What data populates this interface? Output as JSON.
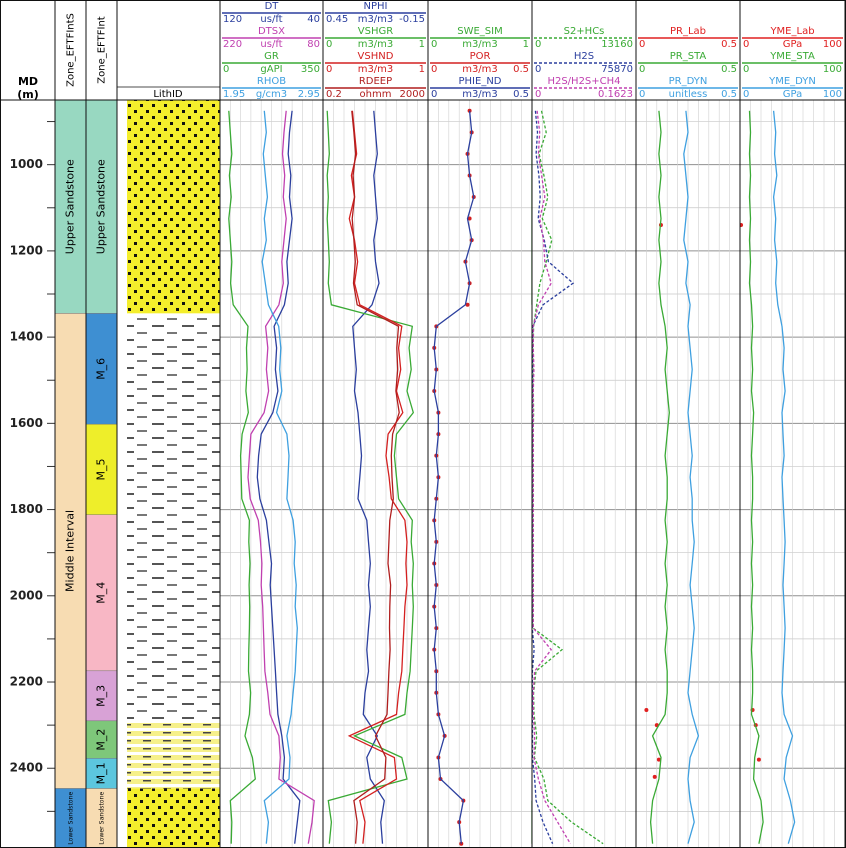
{
  "chart_data": {
    "type": "well-log",
    "depth_axis": {
      "label": "MD",
      "unit": "(m)"
    },
    "ylim": [
      850,
      2585
    ],
    "yticks": [
      1000,
      1200,
      1400,
      1600,
      1800,
      2000,
      2200,
      2400
    ],
    "minor_yticks": [
      900,
      1100,
      1300,
      1500,
      1700,
      1900,
      2100,
      2300,
      2500
    ],
    "grid": true,
    "depths": [
      875,
      925,
      975,
      1025,
      1075,
      1125,
      1175,
      1225,
      1275,
      1325,
      1375,
      1425,
      1475,
      1525,
      1575,
      1625,
      1675,
      1725,
      1775,
      1825,
      1875,
      1925,
      1975,
      2025,
      2075,
      2125,
      2175,
      2225,
      2275,
      2325,
      2375,
      2425,
      2475,
      2525,
      2575
    ],
    "zone_tracks": [
      {
        "name": "Zone_EFTFIntS",
        "zones": [
          {
            "label": "Upper Sandstone",
            "top": 850,
            "base": 1345,
            "color": "#98d8c1"
          },
          {
            "label": "Middle Interval",
            "top": 1345,
            "base": 2447,
            "color": "#f7dcb2"
          },
          {
            "label": "Lower Sandstone",
            "top": 2447,
            "base": 2585,
            "color": "#3e8fd2"
          }
        ]
      },
      {
        "name": "Zone_EFTFInt",
        "zones": [
          {
            "label": "Upper Sandstone",
            "top": 850,
            "base": 1345,
            "color": "#98d8c1"
          },
          {
            "label": "M_6",
            "top": 1345,
            "base": 1602,
            "color": "#3e8fd2"
          },
          {
            "label": "M_5",
            "top": 1602,
            "base": 1812,
            "color": "#eeee2a"
          },
          {
            "label": "M_4",
            "top": 1812,
            "base": 2174,
            "color": "#f8b7c5"
          },
          {
            "label": "M_3",
            "top": 2174,
            "base": 2290,
            "color": "#d8a2d6"
          },
          {
            "label": "M_2",
            "top": 2290,
            "base": 2377,
            "color": "#7ec77a"
          },
          {
            "label": "M_1",
            "top": 2377,
            "base": 2447,
            "color": "#5cc6de"
          },
          {
            "label": "Lower Sandstone",
            "top": 2447,
            "base": 2585,
            "color": "#f7dcb2"
          }
        ]
      }
    ],
    "lith_track": {
      "name": "LithID",
      "intervals": [
        {
          "top": 850,
          "base": 1345,
          "pattern": "sandstone"
        },
        {
          "top": 1345,
          "base": 2290,
          "pattern": "shale"
        },
        {
          "top": 2290,
          "base": 2447,
          "pattern": "interbedded"
        },
        {
          "top": 2447,
          "base": 2585,
          "pattern": "sandstone"
        }
      ]
    },
    "tracks": [
      {
        "curves": [
          {
            "name": "DT",
            "unit": "us/ft",
            "left": 120,
            "right": 40,
            "color": "#2b3f9e",
            "values": [
              64,
              66,
              67,
              65,
              66,
              64,
              66,
              68,
              67,
              70,
              78,
              76,
              77,
              75,
              79,
              88,
              90,
              91,
              89,
              84,
              82,
              80,
              81,
              80,
              79,
              78,
              77,
              76,
              75,
              72,
              70,
              71,
              58,
              60,
              62
            ]
          },
          {
            "name": "DTSX",
            "unit": "us/ft",
            "left": 220,
            "right": 80,
            "color": "#c040b0",
            "values": [
              130,
              133,
              135,
              132,
              134,
              130,
              133,
              136,
              134,
              140,
              158,
              155,
              157,
              154,
              160,
              178,
              180,
              182,
              179,
              168,
              165,
              163,
              164,
              162,
              161,
              160,
              159,
              155,
              152,
              140,
              138,
              140,
              92,
              95,
              100
            ]
          },
          {
            "name": "GR",
            "unit": "gAPI",
            "left": 0,
            "right": 350,
            "color": "#3aaa35",
            "values": [
              30,
              35,
              40,
              32,
              38,
              30,
              35,
              40,
              36,
              45,
              95,
              90,
              92,
              88,
              96,
              75,
              70,
              72,
              74,
              100,
              98,
              102,
              99,
              101,
              100,
              98,
              97,
              104,
              100,
              85,
              110,
              120,
              35,
              40,
              38
            ]
          },
          {
            "name": "RHOB",
            "unit": "g/cm3",
            "left": 1.95,
            "right": 2.95,
            "color": "#3fa0e0",
            "values": [
              2.38,
              2.4,
              2.37,
              2.39,
              2.41,
              2.38,
              2.4,
              2.36,
              2.39,
              2.42,
              2.52,
              2.54,
              2.53,
              2.55,
              2.5,
              2.6,
              2.62,
              2.61,
              2.6,
              2.66,
              2.68,
              2.67,
              2.69,
              2.68,
              2.7,
              2.69,
              2.68,
              2.66,
              2.64,
              2.6,
              2.63,
              2.62,
              2.38,
              2.42,
              2.4
            ]
          }
        ]
      },
      {
        "curves": [
          {
            "name": "NPHI",
            "unit": "m3/m3",
            "left": 0.45,
            "right": -0.15,
            "color": "#2b3f9e",
            "values": [
              0.16,
              0.15,
              0.14,
              0.16,
              0.15,
              0.14,
              0.16,
              0.15,
              0.13,
              0.17,
              0.28,
              0.27,
              0.26,
              0.27,
              0.25,
              0.24,
              0.23,
              0.24,
              0.25,
              0.2,
              0.19,
              0.18,
              0.19,
              0.18,
              0.19,
              0.2,
              0.19,
              0.21,
              0.22,
              0.14,
              0.2,
              0.18,
              0.1,
              0.12,
              0.11
            ]
          },
          {
            "name": "VSHGR",
            "unit": "m3/m3",
            "left": 0,
            "right": 1,
            "color": "#3aaa35",
            "values": [
              0.04,
              0.05,
              0.06,
              0.04,
              0.05,
              0.04,
              0.05,
              0.06,
              0.05,
              0.08,
              0.85,
              0.82,
              0.84,
              0.8,
              0.86,
              0.7,
              0.68,
              0.7,
              0.72,
              0.85,
              0.84,
              0.86,
              0.85,
              0.86,
              0.85,
              0.84,
              0.83,
              0.8,
              0.78,
              0.3,
              0.75,
              0.8,
              0.05,
              0.08,
              0.06
            ]
          },
          {
            "name": "VSHND",
            "unit": "m3/m3",
            "left": 0,
            "right": 1,
            "color": "#d42020",
            "values": [
              0.28,
              0.3,
              0.32,
              0.27,
              0.3,
              0.25,
              0.3,
              0.33,
              0.3,
              0.35,
              0.75,
              0.72,
              0.74,
              0.7,
              0.76,
              0.62,
              0.6,
              0.63,
              0.65,
              0.78,
              0.8,
              0.79,
              0.8,
              0.78,
              0.77,
              0.76,
              0.75,
              0.72,
              0.7,
              0.25,
              0.68,
              0.7,
              0.35,
              0.4,
              0.38
            ]
          },
          {
            "name": "RDEEP",
            "unit": "ohmm",
            "left": 0.2,
            "right": 2000,
            "log": true,
            "color": "#b01e1e",
            "values": [
              2.5,
              3,
              3.5,
              2.8,
              3.2,
              2.6,
              3,
              3.4,
              2.9,
              4,
              150,
              130,
              140,
              120,
              160,
              90,
              80,
              85,
              95,
              70,
              65,
              60,
              75,
              70,
              68,
              72,
              65,
              60,
              55,
              20,
              50,
              45,
              3,
              4,
              3.5
            ]
          }
        ]
      },
      {
        "curves": [
          {
            "name": "SWE_SIM",
            "unit": "m3/m3",
            "left": 0,
            "right": 1,
            "color": "#3aaa35",
            "values": [
              1,
              1,
              1,
              1,
              1,
              1,
              1,
              1,
              1,
              1,
              null,
              null,
              null,
              null,
              null,
              null,
              null,
              null,
              null,
              null,
              null,
              null,
              null,
              null,
              null,
              null,
              null,
              null,
              null,
              null,
              null,
              null,
              1,
              1,
              1
            ]
          },
          {
            "name": "POR",
            "unit": "m3/m3",
            "left": 0,
            "right": 0.5,
            "color": "#d42020",
            "style": "points",
            "values": [
              0.2,
              0.21,
              0.19,
              0.2,
              0.22,
              0.2,
              0.21,
              0.18,
              0.2,
              0.19,
              0.04,
              0.03,
              0.04,
              0.03,
              0.05,
              0.05,
              0.04,
              0.05,
              0.04,
              0.03,
              0.04,
              0.03,
              0.04,
              0.03,
              0.04,
              0.03,
              0.04,
              0.04,
              0.05,
              0.08,
              0.05,
              0.06,
              0.17,
              0.15,
              0.16
            ]
          },
          {
            "name": "PHIE_ND",
            "unit": "m3/m3",
            "left": 0,
            "right": 0.5,
            "color": "#2b3f9e",
            "values": [
              0.2,
              0.21,
              0.19,
              0.2,
              0.22,
              0.19,
              0.21,
              0.18,
              0.2,
              0.18,
              0.04,
              0.03,
              0.04,
              0.03,
              0.05,
              0.05,
              0.04,
              0.05,
              0.04,
              0.03,
              0.04,
              0.03,
              0.04,
              0.03,
              0.04,
              0.03,
              0.04,
              0.04,
              0.05,
              0.08,
              0.05,
              0.06,
              0.17,
              0.15,
              0.16
            ]
          }
        ]
      },
      {
        "curves": [
          {
            "name": "S2+HCs",
            "left": 0,
            "right": 13160,
            "color": "#3aaa35",
            "dash": true,
            "values": [
              1200,
              1800,
              900,
              1500,
              2000,
              1300,
              2500,
              1800,
              1000,
              600,
              200,
              150,
              180,
              160,
              200,
              150,
              140,
              160,
              170,
              150,
              140,
              150,
              160,
              150,
              140,
              3800,
              500,
              200,
              250,
              600,
              300,
              1500,
              2000,
              5000,
              9000
            ]
          },
          {
            "name": "H2S",
            "left": 0,
            "right": 75870,
            "color": "#2b3f9e",
            "dash": true,
            "values": [
              2500,
              4000,
              3000,
              5000,
              6000,
              4500,
              9000,
              12000,
              30000,
              8000,
              500,
              300,
              400,
              350,
              300,
              200,
              200,
              250,
              200,
              200,
              200,
              200,
              200,
              200,
              200,
              1500,
              300,
              200,
              200,
              400,
              300,
              2000,
              3000,
              8000,
              15000
            ]
          },
          {
            "name": "H2S/H2S+CH4",
            "left": 0,
            "right": 0.1623,
            "color": "#c040b0",
            "dash": true,
            "values": [
              0.008,
              0.012,
              0.01,
              0.015,
              0.02,
              0.012,
              0.018,
              0.02,
              0.03,
              0.01,
              0.002,
              0.002,
              0.003,
              0.002,
              0.002,
              0.002,
              0.002,
              0.002,
              0.002,
              0.002,
              0.002,
              0.002,
              0.002,
              0.002,
              0.002,
              0.03,
              0.004,
              0.002,
              0.002,
              0.004,
              0.003,
              0.01,
              0.02,
              0.04,
              0.06
            ]
          }
        ]
      },
      {
        "curves": [
          {
            "name": "PR_Lab",
            "left": 0,
            "right": 0.5,
            "color": "#e02020",
            "style": "points",
            "depths": [
              1140,
              2265,
              2300,
              2380,
              2420
            ],
            "values": [
              0.12,
              0.05,
              0.1,
              0.11,
              0.09
            ]
          },
          {
            "name": "PR_STA",
            "left": 0,
            "right": 0.5,
            "color": "#3aaa35",
            "values": [
              0.11,
              0.12,
              0.11,
              0.12,
              0.11,
              0.12,
              0.11,
              0.12,
              0.11,
              0.12,
              0.14,
              0.15,
              0.14,
              0.15,
              0.16,
              0.15,
              0.14,
              0.15,
              0.15,
              0.14,
              0.15,
              0.14,
              0.15,
              0.14,
              0.15,
              0.14,
              0.15,
              0.15,
              0.14,
              0.08,
              0.12,
              0.11,
              0.08,
              0.07,
              0.08
            ]
          },
          {
            "name": "PR_DYN",
            "unit": "unitless",
            "left": 0,
            "right": 0.5,
            "color": "#3fa0e0",
            "values": [
              0.24,
              0.25,
              0.23,
              0.24,
              0.25,
              0.24,
              0.23,
              0.25,
              0.24,
              0.26,
              0.25,
              0.26,
              0.27,
              0.26,
              0.25,
              0.26,
              0.27,
              0.26,
              0.27,
              0.27,
              0.28,
              0.27,
              0.26,
              0.27,
              0.28,
              0.27,
              0.26,
              0.25,
              0.27,
              0.3,
              0.26,
              0.25,
              0.26,
              0.28,
              0.25
            ]
          }
        ]
      },
      {
        "curves": [
          {
            "name": "YME_Lab",
            "unit": "GPa",
            "left": 0,
            "right": 100,
            "color": "#e02020",
            "style": "points",
            "depths": [
              1140,
              2265,
              2300,
              2380
            ],
            "values": [
              1,
              12,
              15,
              18
            ]
          },
          {
            "name": "YME_STA",
            "left": 0,
            "right": 100,
            "color": "#3aaa35",
            "values": [
              9,
              10,
              9,
              10,
              9,
              10,
              9,
              10,
              9,
              11,
              12,
              11,
              12,
              11,
              13,
              12,
              11,
              12,
              12,
              11,
              12,
              11,
              12,
              11,
              12,
              11,
              12,
              12,
              11,
              18,
              14,
              13,
              20,
              22,
              18
            ]
          },
          {
            "name": "YME_DYN",
            "unit": "GPa",
            "left": 0,
            "right": 100,
            "color": "#3fa0e0",
            "values": [
              32,
              34,
              33,
              35,
              32,
              34,
              33,
              35,
              34,
              36,
              40,
              42,
              41,
              43,
              40,
              41,
              42,
              40,
              41,
              42,
              43,
              42,
              41,
              42,
              43,
              42,
              41,
              40,
              42,
              50,
              44,
              42,
              48,
              52,
              46
            ]
          }
        ]
      }
    ]
  }
}
